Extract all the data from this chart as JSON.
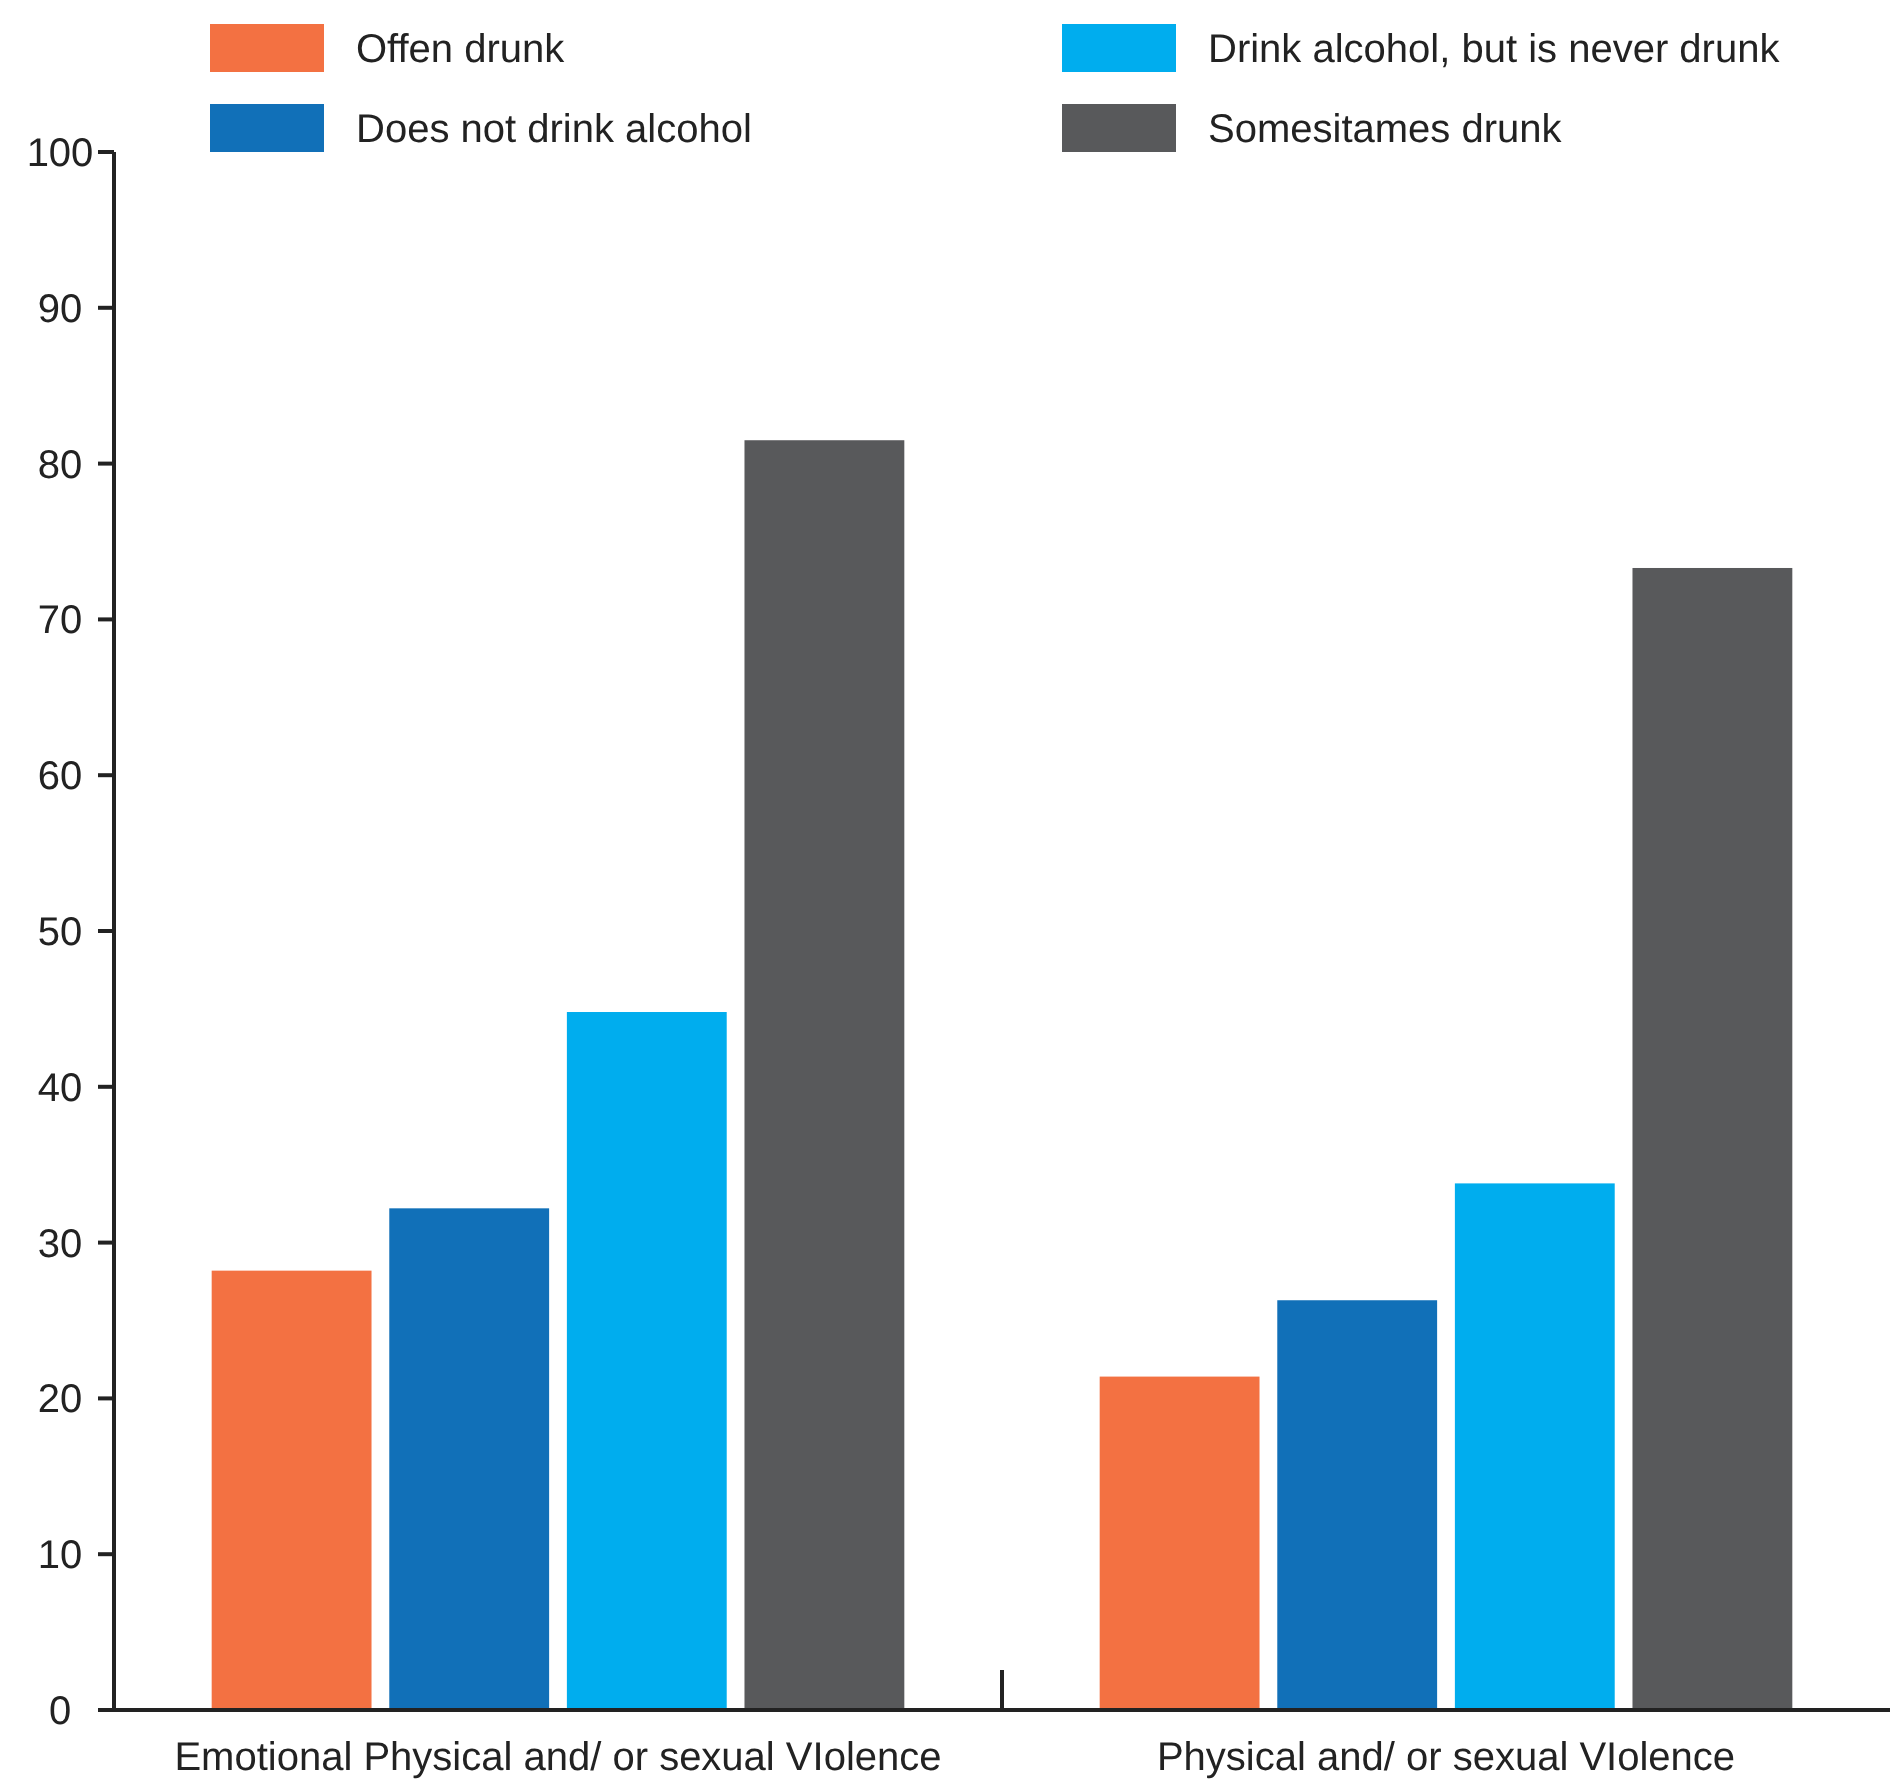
{
  "chart_data": {
    "type": "bar",
    "categories": [
      "Emotional Physical and/ or sexual VIolence",
      "Physical and/ or sexual VIolence"
    ],
    "series": [
      {
        "name": "Offen drunk",
        "color": "#f37142",
        "values": [
          28.2,
          21.4
        ]
      },
      {
        "name": "Does not drink alcohol",
        "color": "#1170b8",
        "values": [
          32.2,
          26.3
        ]
      },
      {
        "name": "Drink alcohol, but is never drunk",
        "color": "#00adee",
        "values": [
          44.8,
          33.8
        ]
      },
      {
        "name": "Somesitames drunk",
        "color": "#58595b",
        "values": [
          81.5,
          73.3
        ]
      }
    ],
    "ylim": [
      0,
      100
    ],
    "yticks": [
      0,
      10,
      20,
      30,
      40,
      50,
      60,
      70,
      80,
      90,
      100
    ],
    "grid": false,
    "legend": "top"
  }
}
